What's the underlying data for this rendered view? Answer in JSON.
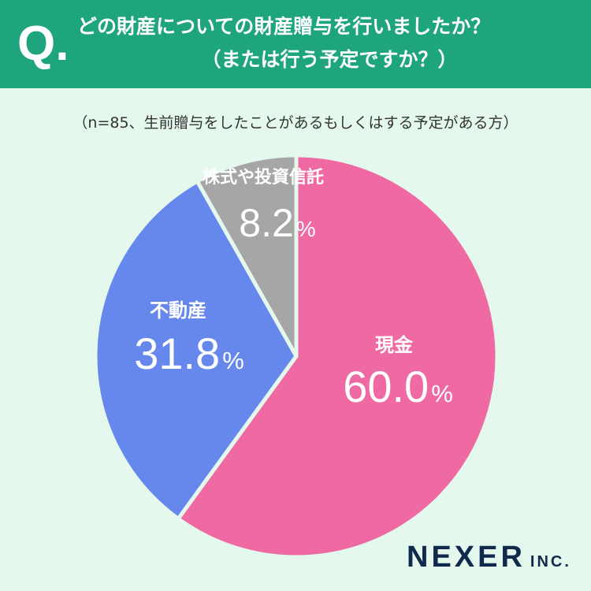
{
  "header": {
    "q_letter": "Q",
    "q_dot": ".",
    "question_line1": "どの財産についての財産贈与を行いましたか？",
    "question_line2": "（または行う予定ですか？）"
  },
  "note": "（n=85、生前贈与をしたことがあるもしくはする予定がある方）",
  "brand": {
    "name": "NEXER",
    "suffix": "INC."
  },
  "colors": {
    "header_bg": "#1ea57e",
    "background": "#e4f8ee",
    "cash": "#ef6aa3",
    "real_estate": "#6688ec",
    "stocks": "#a6a6a6"
  },
  "chart_data": {
    "type": "pie",
    "unit": "%",
    "slices": [
      {
        "label": "現金",
        "value": 60.0,
        "display": "60.0",
        "color": "#ef6aa3"
      },
      {
        "label": "不動産",
        "value": 31.8,
        "display": "31.8",
        "color": "#6688ec"
      },
      {
        "label": "株式や投資信託",
        "value": 8.2,
        "display": "8.2",
        "color": "#a6a6a6"
      }
    ]
  }
}
